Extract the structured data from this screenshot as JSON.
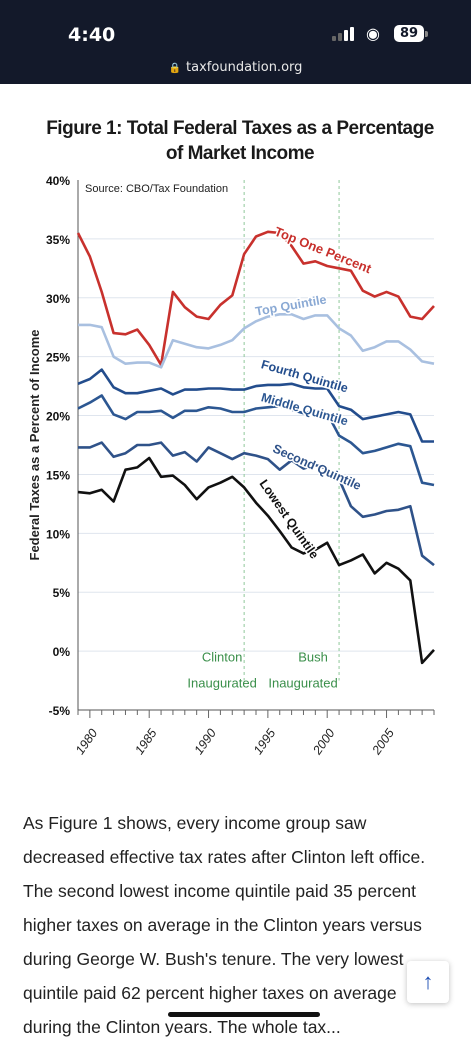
{
  "status_bar": {
    "time": "4:40",
    "battery": "89"
  },
  "browser": {
    "url": "taxfoundation.org"
  },
  "figure": {
    "title_line1": "Figure 1: Total Federal Taxes as a Percentage",
    "title_line2": "of Market Income"
  },
  "chart_data": {
    "type": "line",
    "title": "Figure 1: Total Federal Taxes as a Percentage of Market Income",
    "source": "Source: CBO/Tax Foundation",
    "ylabel": "Federal Taxes as a Percent of Income",
    "xlabel": "",
    "ylim": [
      -5,
      40
    ],
    "xlim": [
      1979,
      2009
    ],
    "yticks": [
      "40%",
      "35%",
      "30%",
      "25%",
      "20%",
      "15%",
      "10%",
      "5%",
      "0%",
      "-5%"
    ],
    "xticks": [
      "1980",
      "1985",
      "1990",
      "1995",
      "2000",
      "2005"
    ],
    "grid": true,
    "x": [
      1979,
      1980,
      1981,
      1982,
      1983,
      1984,
      1985,
      1986,
      1987,
      1988,
      1989,
      1990,
      1991,
      1992,
      1993,
      1994,
      1995,
      1996,
      1997,
      1998,
      1999,
      2000,
      2001,
      2002,
      2003,
      2004,
      2005,
      2006,
      2007,
      2008,
      2009
    ],
    "series": [
      {
        "name": "Top One Percent",
        "color": "#c8312d",
        "values": [
          35.5,
          33.5,
          30.5,
          27,
          26.9,
          27.3,
          26,
          24.3,
          30.5,
          29.2,
          28.4,
          28.2,
          29.4,
          30.2,
          33.7,
          35.2,
          35.6,
          35.5,
          34.4,
          32.9,
          33.1,
          32.7,
          32.5,
          32.3,
          30.6,
          30.1,
          30.5,
          30.1,
          28.4,
          28.2,
          29.3
        ]
      },
      {
        "name": "Top Quintile",
        "color": "#a9c0e0",
        "values": [
          27.7,
          27.7,
          27.5,
          25,
          24.4,
          24.5,
          24.5,
          24.1,
          26.4,
          26.1,
          25.8,
          25.7,
          26,
          26.4,
          27.4,
          28,
          28.4,
          28.6,
          28.6,
          28.2,
          28.5,
          28.5,
          27.4,
          26.8,
          25.5,
          25.8,
          26.3,
          26.3,
          25.6,
          24.6,
          24.4
        ]
      },
      {
        "name": "Fourth Quintile",
        "color": "#234d8d",
        "values": [
          22.7,
          23.1,
          23.9,
          22.4,
          21.9,
          21.9,
          22.1,
          22.3,
          21.8,
          22.2,
          22.2,
          22.3,
          22.3,
          22.2,
          22.2,
          22.5,
          22.6,
          22.6,
          22.7,
          22.4,
          22.3,
          22.3,
          20.8,
          20.5,
          19.7,
          19.9,
          20.1,
          20.3,
          20.1,
          17.8,
          17.8
        ]
      },
      {
        "name": "Middle Quintile",
        "color": "#2c5792",
        "values": [
          20.6,
          21.1,
          21.7,
          20.1,
          19.7,
          20.3,
          20.3,
          20.4,
          19.8,
          20.4,
          20.4,
          20.7,
          20.6,
          20.3,
          20.3,
          20.6,
          20.7,
          20.8,
          20.5,
          20.2,
          20.4,
          20.2,
          18.3,
          17.7,
          16.8,
          17,
          17.3,
          17.6,
          17.4,
          14.3,
          14.1
        ]
      },
      {
        "name": "Second Quintile",
        "color": "#2f5289",
        "values": [
          17.3,
          17.3,
          17.7,
          16.5,
          16.8,
          17.5,
          17.5,
          17.7,
          16.6,
          16.9,
          16.1,
          17.3,
          16.8,
          16.3,
          16.8,
          16.6,
          16.3,
          15.4,
          16.2,
          15.5,
          15.8,
          15.5,
          14.6,
          12.3,
          11.4,
          11.6,
          11.9,
          12.0,
          12.3,
          8.1,
          7.3
        ]
      },
      {
        "name": "Lowest Quintile",
        "color": "#111111",
        "values": [
          13.5,
          13.4,
          13.7,
          12.7,
          15.4,
          15.6,
          16.4,
          14.8,
          14.9,
          14.1,
          12.9,
          13.9,
          14.3,
          14.8,
          13.9,
          12.6,
          11.5,
          10.2,
          8.8,
          8.3,
          8.6,
          9.2,
          7.3,
          7.7,
          8.2,
          6.6,
          7.5,
          7.0,
          6.0,
          -1.0,
          0.1
        ]
      }
    ],
    "annotations": [
      {
        "year": 1993,
        "line1": "Clinton",
        "line2": "Inaugurated"
      },
      {
        "year": 2001,
        "line1": "Bush",
        "line2": "Inaugurated"
      }
    ]
  },
  "article": {
    "paragraph": "As Figure 1 shows, every income group saw decreased effective tax rates after Clinton left office. The second lowest income quintile paid 35 percent higher taxes on average in the Clinton years versus during George W. Bush's tenure. The very lowest quintile paid 62 percent higher taxes on average during the Clinton years. The whole tax..."
  },
  "scroll_top_icon": "arrow-up-icon"
}
